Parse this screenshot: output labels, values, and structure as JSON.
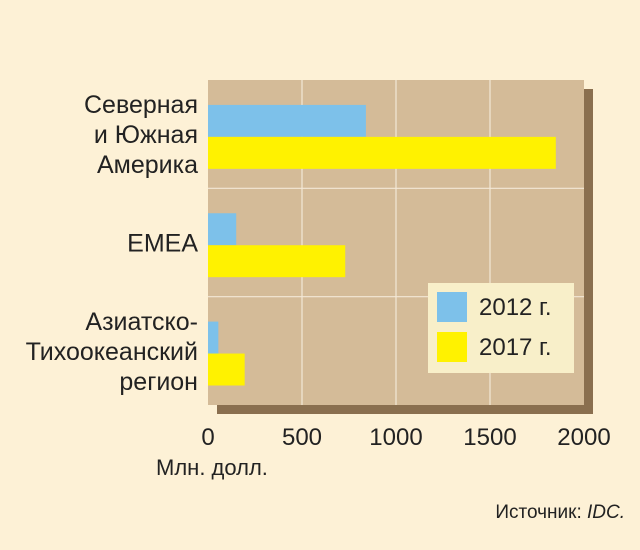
{
  "colors": {
    "background": "#fdf1d6",
    "plot_bg": "#d4bb98",
    "shadow": "#8a6f4f",
    "grid": "#f3e8d6",
    "series_2012": "#7dc1ea",
    "series_2017": "#fff200",
    "legend_bg": "#f8efc9"
  },
  "chart_data": {
    "type": "bar",
    "orientation": "horizontal",
    "categories": [
      [
        "Северная",
        "и Южная",
        "Америка"
      ],
      [
        "EMEA"
      ],
      [
        "Азиатско-",
        "Тихоокеанский",
        "регион"
      ]
    ],
    "series": [
      {
        "name": "2012 г.",
        "values": [
          840,
          150,
          55
        ]
      },
      {
        "name": "2017 г.",
        "values": [
          1850,
          730,
          195
        ]
      }
    ],
    "xlim": [
      0,
      2000
    ],
    "xticks": [
      0,
      500,
      1000,
      1500,
      2000
    ],
    "xlabel": "Млн. долл.",
    "grid": true,
    "legend_position": "bottom-right"
  },
  "source": {
    "label": "Источник: ",
    "name": "IDC."
  }
}
